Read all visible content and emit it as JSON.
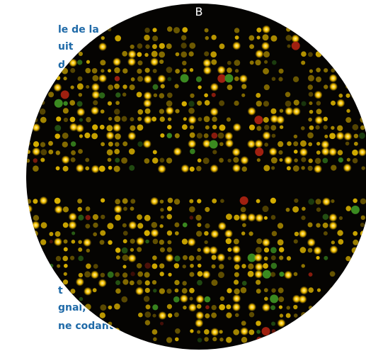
{
  "figure_label": "B",
  "left_text_top": [
    "le de la",
    "uit",
    "d,"
  ],
  "left_text_bottom": [
    "t",
    "gnal,",
    "ne codant"
  ]
}
